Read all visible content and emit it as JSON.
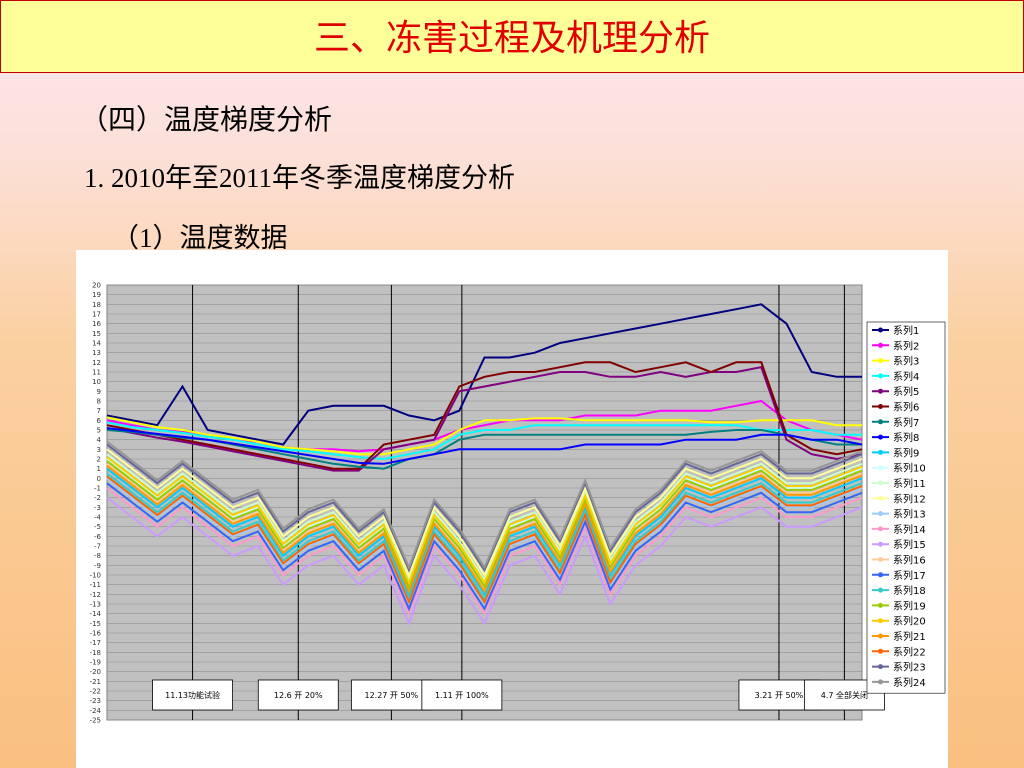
{
  "header": {
    "title": "三、冻害过程及机理分析"
  },
  "headings": [
    "（四）温度梯度分析",
    "1. 2010年至2011年冬季温度梯度分析",
    "（1）温度数据"
  ],
  "chart_data": {
    "type": "line",
    "ylim": [
      -25,
      20
    ],
    "yticks": [
      -25,
      -24,
      -23,
      -22,
      -21,
      -20,
      -19,
      -18,
      -17,
      -16,
      -15,
      -14,
      -13,
      -12,
      -11,
      -10,
      -9,
      -8,
      -7,
      -6,
      -5,
      -4,
      -3,
      -2,
      -1,
      0,
      1,
      2,
      3,
      4,
      5,
      6,
      7,
      8,
      9,
      10,
      11,
      12,
      13,
      14,
      15,
      16,
      17,
      18,
      19,
      20
    ],
    "grid": true,
    "legend": "right",
    "annotations": [
      {
        "label": "11.13功能试验",
        "x": 3.4
      },
      {
        "label": "12.6 开 20%",
        "x": 7.6
      },
      {
        "label": "12.27 开 50%",
        "x": 11.3
      },
      {
        "label": "1.11 开 100%",
        "x": 14.1
      },
      {
        "label": "3.21 开 50%",
        "x": 26.7
      },
      {
        "label": "4.7 全部关闭",
        "x": 29.3
      }
    ],
    "series": [
      {
        "name": "系列1",
        "color": "#000080",
        "values": [
          6.5,
          6,
          5.5,
          9.5,
          5,
          4.5,
          4,
          3.5,
          7,
          7.5,
          7.5,
          7.5,
          6.5,
          6,
          7,
          12.5,
          12.5,
          13,
          14,
          14.5,
          15,
          15.5,
          16,
          16.5,
          17,
          17.5,
          18,
          16,
          11,
          10.5,
          10.5
        ]
      },
      {
        "name": "系列2",
        "color": "#ff00ff",
        "values": [
          6,
          5.5,
          5,
          4.8,
          4.5,
          4,
          3.8,
          3.2,
          3,
          3,
          2.8,
          3,
          3.5,
          4,
          5,
          5.5,
          6,
          6,
          6,
          6.5,
          6.5,
          6.5,
          7,
          7,
          7,
          7.5,
          8,
          6,
          5,
          4.5,
          4
        ]
      },
      {
        "name": "系列3",
        "color": "#ffff00",
        "values": [
          6.3,
          5.8,
          5.3,
          5,
          4.5,
          4.2,
          3.8,
          3.2,
          3,
          2.8,
          2.5,
          2.5,
          3,
          3.5,
          5,
          6,
          6,
          6.2,
          6.2,
          6,
          6,
          6,
          6,
          6,
          5.8,
          5.8,
          6,
          6,
          6,
          5.5,
          5.5
        ]
      },
      {
        "name": "系列4",
        "color": "#00ffff",
        "values": [
          5.8,
          5.3,
          5,
          4.7,
          4.3,
          4,
          3.5,
          3,
          2.8,
          2.5,
          2.2,
          2,
          2.5,
          3,
          4.5,
          5,
          5,
          5.5,
          5.5,
          5.5,
          5.5,
          5.5,
          5.5,
          5.5,
          5.5,
          5.5,
          5,
          5,
          5,
          4.5,
          4.5
        ]
      },
      {
        "name": "系列5",
        "color": "#800080",
        "values": [
          5.2,
          4.7,
          4.2,
          3.8,
          3.3,
          2.8,
          2.3,
          1.8,
          1.3,
          0.8,
          0.8,
          3,
          3.5,
          4,
          9,
          9.5,
          10,
          10.5,
          11,
          11,
          10.5,
          10.5,
          11,
          10.5,
          11,
          11,
          11.5,
          4,
          2.5,
          2,
          2.5
        ]
      },
      {
        "name": "系列6",
        "color": "#800000",
        "values": [
          5.5,
          5,
          4.5,
          4,
          3.5,
          3,
          2.5,
          2,
          1.5,
          1,
          1,
          3.5,
          4,
          4.5,
          9.5,
          10.5,
          11,
          11,
          11.5,
          12,
          12,
          11,
          11.5,
          12,
          11,
          12,
          12,
          4.5,
          3,
          2.5,
          3
        ]
      },
      {
        "name": "系列7",
        "color": "#008080",
        "values": [
          5,
          4.8,
          4.5,
          4.2,
          4,
          3.5,
          3,
          2.5,
          2,
          1.5,
          1.2,
          1,
          2,
          2.5,
          4,
          4.5,
          4.5,
          4.5,
          4.5,
          4.5,
          4.5,
          4.5,
          4.5,
          4.5,
          4.8,
          5,
          5,
          4.5,
          4,
          3.5,
          3.5
        ]
      },
      {
        "name": "系列8",
        "color": "#0000ff",
        "values": [
          5.2,
          4.9,
          4.6,
          4.3,
          4,
          3.6,
          3.2,
          2.8,
          2.4,
          2,
          1.6,
          1.5,
          2,
          2.5,
          3,
          3,
          3,
          3,
          3,
          3.5,
          3.5,
          3.5,
          3.5,
          4,
          4,
          4,
          4.5,
          4.5,
          4,
          4,
          3.5
        ]
      },
      {
        "name": "系列9",
        "color": "#00ccff",
        "values": [
          1,
          -1,
          -3,
          -1,
          -3,
          -5,
          -4,
          -8,
          -6,
          -5,
          -8,
          -6,
          -12,
          -5,
          -8,
          -12,
          -6,
          -5,
          -9,
          -3,
          -10,
          -6,
          -4,
          -1,
          -2,
          -1,
          0,
          -2,
          -2,
          -1,
          0
        ]
      },
      {
        "name": "系列10",
        "color": "#ccffff",
        "values": [
          2,
          0,
          -2,
          0,
          -2,
          -4,
          -3,
          -7,
          -5,
          -4,
          -7,
          -5,
          -11,
          -4,
          -7,
          -11,
          -5,
          -4,
          -8,
          -2,
          -9,
          -5,
          -3,
          0,
          -1,
          0,
          1,
          -1,
          -1,
          0,
          1
        ]
      },
      {
        "name": "系列11",
        "color": "#ccffcc",
        "values": [
          2.5,
          0.5,
          -1.5,
          0.5,
          -1.5,
          -3.5,
          -2.5,
          -6.5,
          -4.5,
          -3.5,
          -6.5,
          -4.5,
          -10.5,
          -3.5,
          -6.5,
          -10.5,
          -4.5,
          -3.5,
          -7.5,
          -1.5,
          -8.5,
          -4.5,
          -2.5,
          0.5,
          -0.5,
          0.5,
          1.5,
          -0.5,
          -0.5,
          0.5,
          1.5
        ]
      },
      {
        "name": "系列12",
        "color": "#ffff99",
        "values": [
          3,
          1,
          -1,
          1,
          -1,
          -3,
          -2,
          -6,
          -4,
          -3,
          -6,
          -4,
          -10,
          -3,
          -6,
          -10,
          -4,
          -3,
          -7,
          -1,
          -8,
          -4,
          -2,
          1,
          0,
          1,
          2,
          0,
          0,
          1,
          2
        ]
      },
      {
        "name": "系列13",
        "color": "#99ccff",
        "values": [
          0,
          -2,
          -4,
          -2,
          -4,
          -6,
          -5,
          -9,
          -7,
          -6,
          -9,
          -7,
          -13,
          -6,
          -9,
          -13,
          -7,
          -6,
          -10,
          -4,
          -11,
          -7,
          -5,
          -2,
          -3,
          -2,
          -1,
          -3,
          -3,
          -2,
          -1
        ]
      },
      {
        "name": "系列14",
        "color": "#ff99cc",
        "values": [
          -1,
          -3,
          -5,
          -3,
          -5,
          -7,
          -6,
          -10,
          -8,
          -7,
          -10,
          -8,
          -14,
          -7,
          -10,
          -14,
          -8,
          -7,
          -11,
          -5,
          -12,
          -8,
          -6,
          -3,
          -4,
          -3,
          -2,
          -4,
          -4,
          -3,
          -2
        ]
      },
      {
        "name": "系列15",
        "color": "#cc99ff",
        "values": [
          -2,
          -4,
          -6,
          -4,
          -6,
          -8,
          -7,
          -11,
          -9,
          -8,
          -11,
          -9,
          -15,
          -8,
          -11,
          -15,
          -9,
          -8,
          -12,
          -6,
          -13,
          -9,
          -7,
          -4,
          -5,
          -4,
          -3,
          -5,
          -5,
          -4,
          -3
        ]
      },
      {
        "name": "系列16",
        "color": "#ffcc99",
        "values": [
          1.5,
          -0.5,
          -2.5,
          -0.5,
          -2.5,
          -4.5,
          -3.5,
          -7.5,
          -5.5,
          -4.5,
          -7.5,
          -5.5,
          -11.5,
          -4.5,
          -7.5,
          -11.5,
          -5.5,
          -4.5,
          -8.5,
          -2.5,
          -9.5,
          -5.5,
          -3.5,
          -0.5,
          -1.5,
          -0.5,
          0.5,
          -1.5,
          -1.5,
          -0.5,
          0.5
        ]
      },
      {
        "name": "系列17",
        "color": "#3366ff",
        "values": [
          -0.5,
          -2.5,
          -4.5,
          -2.5,
          -4.5,
          -6.5,
          -5.5,
          -9.5,
          -7.5,
          -6.5,
          -9.5,
          -7.5,
          -13.5,
          -6.5,
          -9.5,
          -13.5,
          -7.5,
          -6.5,
          -10.5,
          -4.5,
          -11.5,
          -7.5,
          -5.5,
          -2.5,
          -3.5,
          -2.5,
          -1.5,
          -3.5,
          -3.5,
          -2.5,
          -1.5
        ]
      },
      {
        "name": "系列18",
        "color": "#33cccc",
        "values": [
          0.5,
          -1.5,
          -3.5,
          -1.5,
          -3.5,
          -5.5,
          -4.5,
          -8.5,
          -6.5,
          -5.5,
          -8.5,
          -6.5,
          -12.5,
          -5.5,
          -8.5,
          -12.5,
          -6.5,
          -5.5,
          -9.5,
          -3.5,
          -10.5,
          -6.5,
          -4.5,
          -1.5,
          -2.5,
          -1.5,
          -0.5,
          -2.5,
          -2.5,
          -1.5,
          -0.5
        ]
      },
      {
        "name": "系列19",
        "color": "#99cc00",
        "values": [
          1.8,
          -0.2,
          -2.2,
          -0.2,
          -2.2,
          -4.2,
          -3.2,
          -7.2,
          -5.2,
          -4.2,
          -7.2,
          -5.2,
          -11.2,
          -4.2,
          -7.2,
          -11.2,
          -5.2,
          -4.2,
          -8.2,
          -2.2,
          -9.2,
          -5.2,
          -3.2,
          -0.2,
          -1.2,
          -0.2,
          0.8,
          -1.2,
          -1.2,
          -0.2,
          0.8
        ]
      },
      {
        "name": "系列20",
        "color": "#ffcc00",
        "values": [
          2.2,
          0.2,
          -1.8,
          0.2,
          -1.8,
          -3.8,
          -2.8,
          -6.8,
          -4.8,
          -3.8,
          -6.8,
          -4.8,
          -10.8,
          -3.8,
          -6.8,
          -10.8,
          -4.8,
          -3.8,
          -7.8,
          -1.8,
          -8.8,
          -4.8,
          -2.8,
          0.2,
          -0.8,
          0.2,
          1.2,
          -0.8,
          -0.8,
          0.2,
          1.2
        ]
      },
      {
        "name": "系列21",
        "color": "#ff9900",
        "values": [
          1.3,
          -0.7,
          -2.7,
          -0.7,
          -2.7,
          -4.7,
          -3.7,
          -7.7,
          -5.7,
          -4.7,
          -7.7,
          -5.7,
          -11.7,
          -4.7,
          -7.7,
          -11.7,
          -5.7,
          -4.7,
          -8.7,
          -2.7,
          -9.7,
          -5.7,
          -3.7,
          -0.7,
          -1.7,
          -0.7,
          0.3,
          -1.7,
          -1.7,
          -0.7,
          0.3
        ]
      },
      {
        "name": "系列22",
        "color": "#ff6600",
        "values": [
          0.2,
          -1.8,
          -3.8,
          -1.8,
          -3.8,
          -5.8,
          -4.8,
          -8.8,
          -6.8,
          -5.8,
          -8.8,
          -6.8,
          -12.8,
          -5.8,
          -8.8,
          -12.8,
          -6.8,
          -5.8,
          -9.8,
          -3.8,
          -10.8,
          -6.8,
          -4.8,
          -1.8,
          -2.8,
          -1.8,
          -0.8,
          -2.8,
          -2.8,
          -1.8,
          -0.8
        ]
      },
      {
        "name": "系列23",
        "color": "#666699",
        "values": [
          3.5,
          1.5,
          -0.5,
          1.5,
          -0.5,
          -2.5,
          -1.5,
          -5.5,
          -3.5,
          -2.5,
          -5.5,
          -3.5,
          -9.5,
          -2.5,
          -5.5,
          -9.5,
          -3.5,
          -2.5,
          -6.5,
          -0.5,
          -7.5,
          -3.5,
          -1.5,
          1.5,
          0.5,
          1.5,
          2.5,
          0.5,
          0.5,
          1.5,
          2.5
        ]
      },
      {
        "name": "系列24",
        "color": "#969696",
        "values": [
          3.8,
          1.8,
          -0.2,
          1.8,
          -0.2,
          -2.2,
          -1.2,
          -5.2,
          -3.2,
          -2.2,
          -5.2,
          -3.2,
          -9.2,
          -2.2,
          -5.2,
          -9.2,
          -3.2,
          -2.2,
          -6.2,
          -0.2,
          -7.2,
          -3.2,
          -1.2,
          1.8,
          0.8,
          1.8,
          2.8,
          0.8,
          0.8,
          1.8,
          2.8
        ]
      }
    ]
  }
}
